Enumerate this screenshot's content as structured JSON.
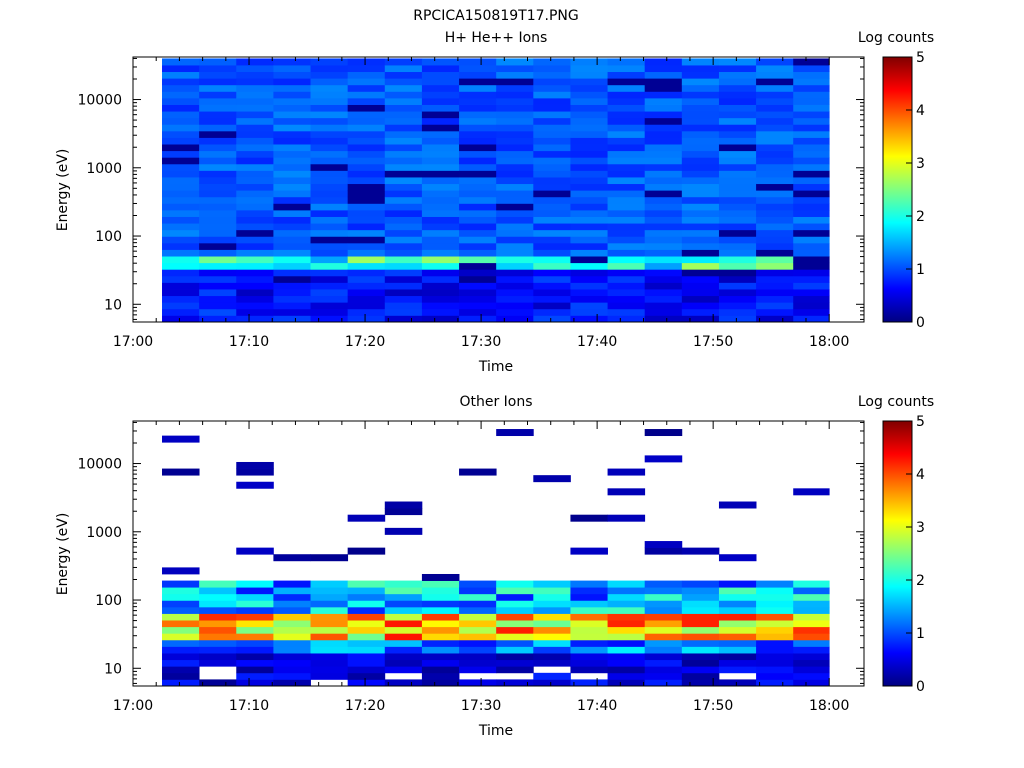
{
  "page_title": "RPCICA150819T17.PNG",
  "chart_data": [
    {
      "type": "heatmap",
      "title": "H+ He++ Ions",
      "xlabel": "Time",
      "ylabel": "Energy (eV)",
      "x_tick_labels": [
        "17:00",
        "17:10",
        "17:20",
        "17:30",
        "17:40",
        "17:50",
        "18:00"
      ],
      "y_tick_labels": [
        "10",
        "100",
        "1000",
        "10000"
      ],
      "y_scale": "log",
      "ylim": [
        5.5,
        42000
      ],
      "xlim_minutes": [
        0,
        63
      ],
      "x_minutes": [
        2.5,
        5.7,
        8.9,
        12.1,
        15.3,
        18.5,
        21.7,
        24.9,
        28.1,
        31.3,
        34.5,
        37.7,
        40.9,
        44.1,
        47.3,
        50.5,
        53.7,
        56.9
      ],
      "colorbar": {
        "label": "Log counts",
        "ticks": [
          "0",
          "1",
          "2",
          "3",
          "4",
          "5"
        ],
        "range": [
          0,
          5
        ],
        "colormap": "jet"
      },
      "values_note_max_log_counts": 2.7
    },
    {
      "type": "heatmap",
      "title": "Other Ions",
      "xlabel": "Time",
      "ylabel": "Energy (eV)",
      "x_tick_labels": [
        "17:00",
        "17:10",
        "17:20",
        "17:30",
        "17:40",
        "17:50",
        "18:00"
      ],
      "y_tick_labels": [
        "10",
        "100",
        "1000",
        "10000"
      ],
      "y_scale": "log",
      "ylim": [
        5.5,
        42000
      ],
      "xlim_minutes": [
        0,
        63
      ],
      "x_minutes": [
        2.5,
        5.7,
        8.9,
        12.1,
        15.3,
        18.5,
        21.7,
        24.9,
        28.1,
        31.3,
        34.5,
        37.7,
        40.9,
        44.1,
        47.3,
        50.5,
        53.7,
        56.9
      ],
      "colorbar": {
        "label": "Log counts",
        "ticks": [
          "0",
          "1",
          "2",
          "3",
          "4",
          "5"
        ],
        "range": [
          0,
          5
        ],
        "colormap": "jet"
      },
      "values_note_max_log_counts": 4.3
    }
  ]
}
